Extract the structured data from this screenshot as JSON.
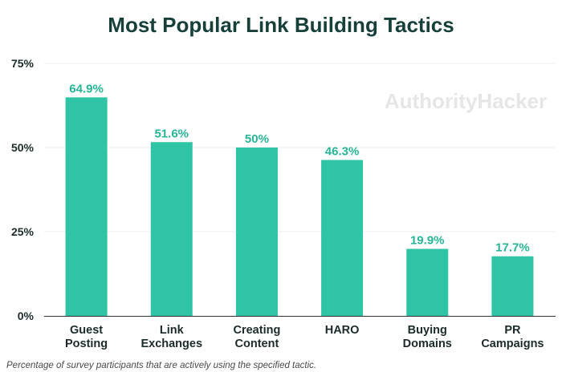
{
  "chart_data": {
    "type": "bar",
    "title": "Most Popular Link Building Tactics",
    "categories": [
      [
        "Guest",
        "Posting"
      ],
      [
        "Link",
        "Exchanges"
      ],
      [
        "Creating",
        "Content"
      ],
      [
        "HARO"
      ],
      [
        "Buying",
        "Domains"
      ],
      [
        "PR",
        "Campaigns"
      ]
    ],
    "values": [
      64.9,
      51.6,
      50,
      46.3,
      19.9,
      17.7
    ],
    "data_labels": [
      "64.9%",
      "51.6%",
      "50%",
      "46.3%",
      "19.9%",
      "17.7%"
    ],
    "yticks": [
      0,
      25,
      50,
      75
    ],
    "ytick_labels": [
      "0%",
      "25%",
      "50%",
      "75%"
    ],
    "ylim": [
      0,
      75
    ],
    "grid": true,
    "xlabel": "",
    "ylabel": "",
    "bar_color": "#2ec4a5",
    "label_color": "#26b597"
  },
  "watermark": "AuthorityHacker",
  "footnote": "Percentage of survey participants that are actively using the specified tactic."
}
